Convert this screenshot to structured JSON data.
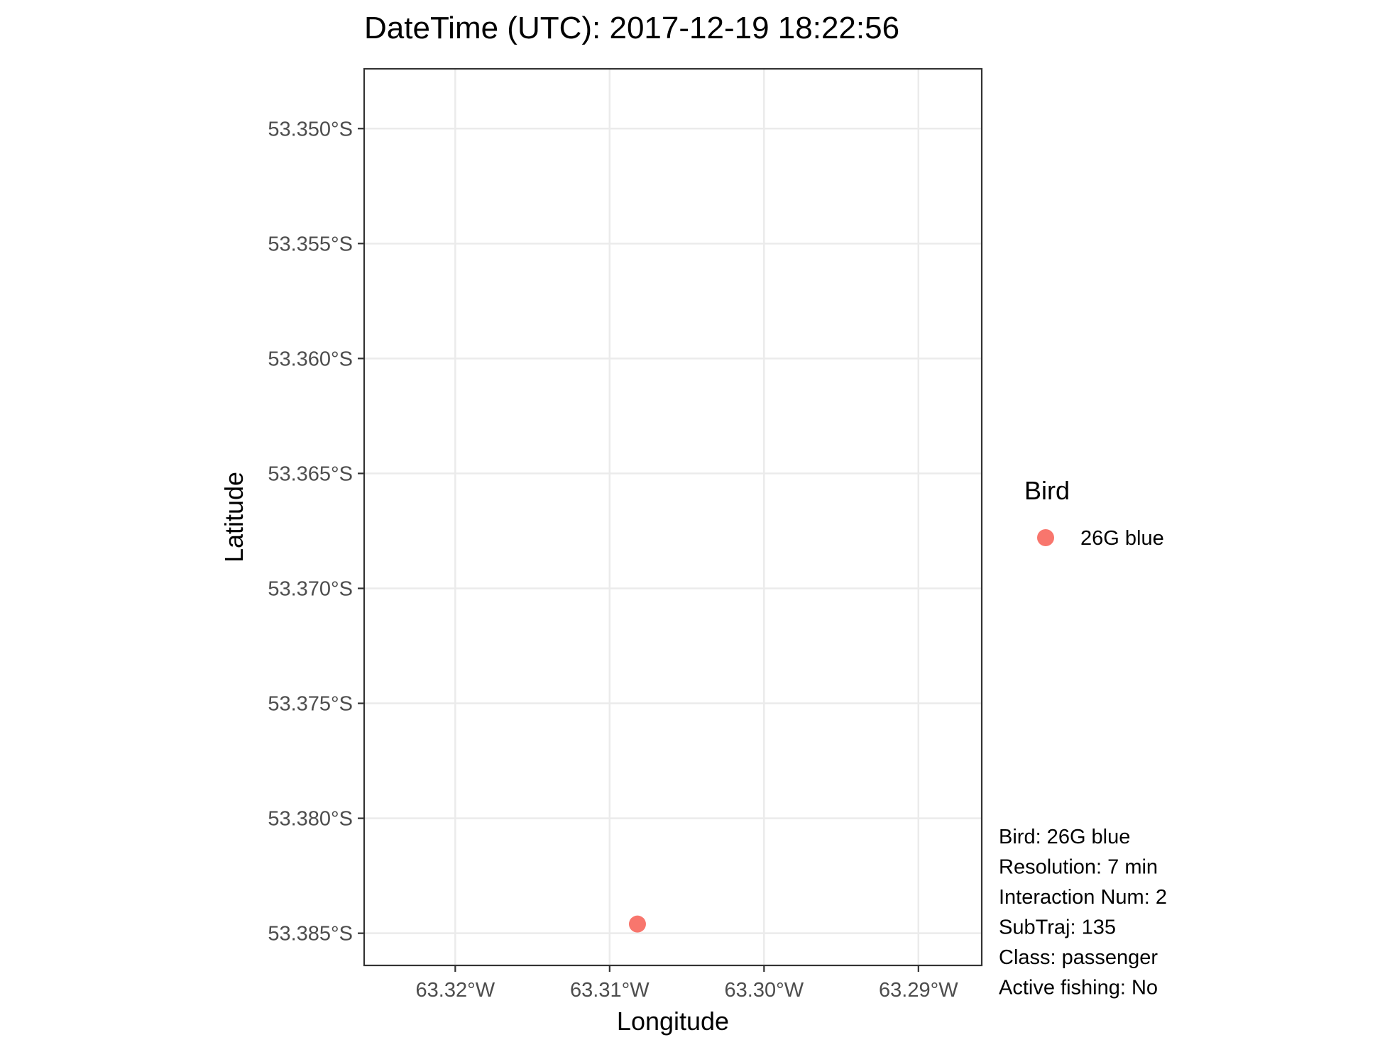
{
  "chart_data": {
    "type": "scatter",
    "title": "DateTime (UTC): 2017-12-19 18:22:56",
    "xlabel": "Longitude",
    "ylabel": "Latitude",
    "xlim": [
      -63.3259,
      -63.2859
    ],
    "ylim": [
      -53.3864,
      -53.3474
    ],
    "x_ticks": [
      -63.32,
      -63.31,
      -63.3,
      -63.29
    ],
    "x_tick_labels": [
      "63.32°W",
      "63.31°W",
      "63.30°W",
      "63.29°W"
    ],
    "y_ticks": [
      -53.35,
      -53.355,
      -53.36,
      -53.365,
      -53.37,
      -53.375,
      -53.38,
      -53.385
    ],
    "y_tick_labels": [
      "53.350°S",
      "53.355°S",
      "53.360°S",
      "53.365°S",
      "53.370°S",
      "53.375°S",
      "53.380°S",
      "53.385°S"
    ],
    "grid": true,
    "legend": {
      "title": "Bird",
      "position": "right",
      "entries": [
        {
          "label": "26G blue",
          "color": "#F8766D"
        }
      ]
    },
    "series": [
      {
        "name": "26G blue",
        "color": "#F8766D",
        "points": [
          {
            "x": -63.3082,
            "y": -53.3846
          }
        ]
      }
    ],
    "annotations": [
      "Bird: 26G blue",
      "Resolution: 7 min",
      "Interaction Num: 2",
      "SubTraj: 135",
      "Class: passenger",
      "Active fishing: No"
    ]
  }
}
